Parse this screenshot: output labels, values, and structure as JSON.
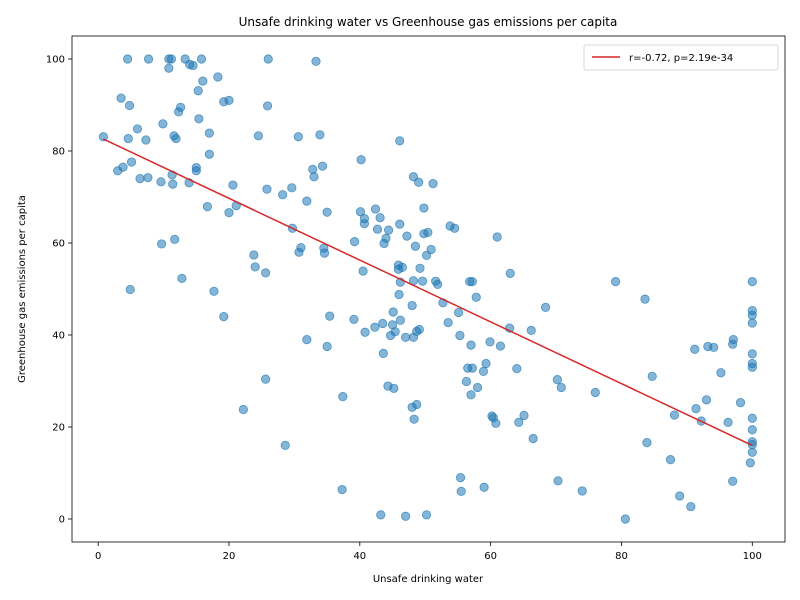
{
  "chart_data": {
    "type": "scatter",
    "title": "Unsafe drinking water vs Greenhouse gas emissions per capita",
    "xlabel": "Unsafe drinking water",
    "ylabel": "Greenhouse gas emissions per capita",
    "xlim": [
      -4,
      105
    ],
    "ylim": [
      -5,
      105
    ],
    "xticks": [
      0,
      20,
      40,
      60,
      80,
      100
    ],
    "yticks": [
      0,
      20,
      40,
      60,
      80,
      100
    ],
    "grid": false,
    "legend_position": "top-right",
    "colors": {
      "points": "#1f77b4",
      "fit_line": "#d62728"
    },
    "fit_line": {
      "label": "r=-0.72, p=2.19e-34",
      "x": [
        0.8,
        100
      ],
      "y": [
        82.6,
        16.0
      ]
    },
    "points": [
      [
        4.5,
        100
      ],
      [
        7.7,
        100
      ],
      [
        10.8,
        100
      ],
      [
        11.2,
        100
      ],
      [
        13.3,
        100
      ],
      [
        15.8,
        100
      ],
      [
        26.0,
        100
      ],
      [
        33.3,
        99.5
      ],
      [
        14.0,
        98.8
      ],
      [
        14.5,
        98.6
      ],
      [
        10.8,
        98.0
      ],
      [
        18.3,
        96.1
      ],
      [
        16.0,
        95.2
      ],
      [
        15.3,
        93.1
      ],
      [
        3.5,
        91.5
      ],
      [
        20.0,
        91.0
      ],
      [
        19.2,
        90.7
      ],
      [
        4.8,
        89.9
      ],
      [
        25.9,
        89.8
      ],
      [
        12.6,
        89.5
      ],
      [
        12.3,
        88.5
      ],
      [
        15.4,
        87.0
      ],
      [
        9.9,
        85.9
      ],
      [
        6.0,
        84.8
      ],
      [
        17.0,
        83.9
      ],
      [
        33.9,
        83.5
      ],
      [
        24.5,
        83.3
      ],
      [
        11.6,
        83.3
      ],
      [
        30.6,
        83.1
      ],
      [
        0.8,
        83.1
      ],
      [
        4.6,
        82.7
      ],
      [
        11.9,
        82.7
      ],
      [
        7.3,
        82.4
      ],
      [
        46.1,
        82.2
      ],
      [
        17.0,
        79.3
      ],
      [
        40.2,
        78.1
      ],
      [
        5.1,
        77.6
      ],
      [
        34.3,
        76.7
      ],
      [
        3.8,
        76.5
      ],
      [
        15.0,
        76.4
      ],
      [
        32.8,
        76.0
      ],
      [
        3.0,
        75.7
      ],
      [
        15.0,
        75.7
      ],
      [
        11.3,
        74.8
      ],
      [
        48.2,
        74.4
      ],
      [
        33.0,
        74.4
      ],
      [
        7.6,
        74.2
      ],
      [
        6.4,
        74.0
      ],
      [
        9.6,
        73.3
      ],
      [
        49.0,
        73.2
      ],
      [
        13.9,
        73.1
      ],
      [
        51.2,
        72.9
      ],
      [
        11.4,
        72.8
      ],
      [
        20.6,
        72.6
      ],
      [
        29.6,
        72.0
      ],
      [
        25.8,
        71.7
      ],
      [
        28.2,
        70.5
      ],
      [
        31.9,
        69.1
      ],
      [
        21.1,
        68.1
      ],
      [
        16.7,
        67.9
      ],
      [
        49.8,
        67.6
      ],
      [
        42.4,
        67.4
      ],
      [
        40.1,
        66.8
      ],
      [
        35.0,
        66.7
      ],
      [
        20.0,
        66.6
      ],
      [
        43.1,
        65.5
      ],
      [
        40.7,
        65.3
      ],
      [
        40.7,
        64.2
      ],
      [
        46.1,
        64.1
      ],
      [
        53.8,
        63.7
      ],
      [
        54.5,
        63.2
      ],
      [
        29.7,
        63.2
      ],
      [
        42.7,
        63.0
      ],
      [
        44.4,
        62.8
      ],
      [
        50.4,
        62.3
      ],
      [
        49.8,
        62.0
      ],
      [
        47.2,
        61.5
      ],
      [
        61.0,
        61.3
      ],
      [
        44.0,
        61.0
      ],
      [
        39.2,
        60.3
      ],
      [
        11.7,
        60.8
      ],
      [
        9.7,
        59.8
      ],
      [
        43.7,
        59.9
      ],
      [
        48.5,
        59.3
      ],
      [
        31.0,
        59.0
      ],
      [
        34.5,
        58.9
      ],
      [
        50.9,
        58.6
      ],
      [
        30.7,
        58.0
      ],
      [
        34.6,
        57.8
      ],
      [
        23.8,
        57.4
      ],
      [
        50.2,
        57.3
      ],
      [
        45.9,
        55.2
      ],
      [
        46.5,
        54.7
      ],
      [
        45.9,
        54.3
      ],
      [
        49.2,
        54.5
      ],
      [
        24.0,
        54.8
      ],
      [
        40.5,
        53.9
      ],
      [
        25.6,
        53.5
      ],
      [
        63.0,
        53.4
      ],
      [
        12.8,
        52.3
      ],
      [
        48.2,
        51.8
      ],
      [
        46.2,
        51.5
      ],
      [
        49.6,
        51.7
      ],
      [
        51.6,
        51.7
      ],
      [
        51.9,
        51.0
      ],
      [
        56.8,
        51.6
      ],
      [
        57.2,
        51.6
      ],
      [
        79.1,
        51.6
      ],
      [
        100,
        51.6
      ],
      [
        4.9,
        49.9
      ],
      [
        17.7,
        49.5
      ],
      [
        46.0,
        48.8
      ],
      [
        57.8,
        48.2
      ],
      [
        83.6,
        47.8
      ],
      [
        52.7,
        47.0
      ],
      [
        48.0,
        46.4
      ],
      [
        68.4,
        46.0
      ],
      [
        100,
        45.3
      ],
      [
        45.1,
        45.0
      ],
      [
        55.1,
        44.9
      ],
      [
        19.2,
        44.0
      ],
      [
        35.4,
        44.1
      ],
      [
        100,
        44.3
      ],
      [
        39.1,
        43.4
      ],
      [
        46.2,
        43.2
      ],
      [
        53.5,
        42.7
      ],
      [
        43.5,
        42.5
      ],
      [
        45.0,
        42.2
      ],
      [
        100,
        42.6
      ],
      [
        42.3,
        41.7
      ],
      [
        62.9,
        41.5
      ],
      [
        49.1,
        41.2
      ],
      [
        40.8,
        40.6
      ],
      [
        48.7,
        40.8
      ],
      [
        66.2,
        41.0
      ],
      [
        45.4,
        40.7
      ],
      [
        44.7,
        39.9
      ],
      [
        47.0,
        39.5
      ],
      [
        48.2,
        39.5
      ],
      [
        55.3,
        39.9
      ],
      [
        31.9,
        39.0
      ],
      [
        97.1,
        39.0
      ],
      [
        59.9,
        38.5
      ],
      [
        97.0,
        38.0
      ],
      [
        57.0,
        37.8
      ],
      [
        61.5,
        37.6
      ],
      [
        93.2,
        37.5
      ],
      [
        94.1,
        37.3
      ],
      [
        35.0,
        37.5
      ],
      [
        91.2,
        36.9
      ],
      [
        43.6,
        36.0
      ],
      [
        100,
        35.9
      ],
      [
        59.3,
        33.8
      ],
      [
        100,
        33.8
      ],
      [
        100,
        33.0
      ],
      [
        56.5,
        32.8
      ],
      [
        57.2,
        32.8
      ],
      [
        64.0,
        32.7
      ],
      [
        58.9,
        32.1
      ],
      [
        95.2,
        31.8
      ],
      [
        84.7,
        31.0
      ],
      [
        56.3,
        29.9
      ],
      [
        70.2,
        30.3
      ],
      [
        25.6,
        30.4
      ],
      [
        44.3,
        28.9
      ],
      [
        45.2,
        28.4
      ],
      [
        58.0,
        28.6
      ],
      [
        70.8,
        28.6
      ],
      [
        76.0,
        27.5
      ],
      [
        57.0,
        27.0
      ],
      [
        37.4,
        26.6
      ],
      [
        93.0,
        25.9
      ],
      [
        98.2,
        25.3
      ],
      [
        48.7,
        24.9
      ],
      [
        48.0,
        24.3
      ],
      [
        22.2,
        23.8
      ],
      [
        91.4,
        24.0
      ],
      [
        60.2,
        22.4
      ],
      [
        60.4,
        22.0
      ],
      [
        65.1,
        22.5
      ],
      [
        88.1,
        22.6
      ],
      [
        48.3,
        21.7
      ],
      [
        60.8,
        20.8
      ],
      [
        64.3,
        21.0
      ],
      [
        92.2,
        21.3
      ],
      [
        96.3,
        21.0
      ],
      [
        100,
        21.9
      ],
      [
        100,
        19.4
      ],
      [
        66.5,
        17.5
      ],
      [
        83.9,
        16.6
      ],
      [
        100,
        16.8
      ],
      [
        100,
        16.2
      ],
      [
        28.6,
        16.0
      ],
      [
        100,
        14.5
      ],
      [
        87.5,
        12.9
      ],
      [
        99.7,
        12.2
      ],
      [
        55.4,
        9.0
      ],
      [
        70.3,
        8.3
      ],
      [
        97.0,
        8.2
      ],
      [
        59.0,
        6.9
      ],
      [
        37.3,
        6.4
      ],
      [
        74.0,
        6.1
      ],
      [
        55.5,
        6.0
      ],
      [
        88.9,
        5.0
      ],
      [
        90.6,
        2.7
      ],
      [
        43.2,
        0.9
      ],
      [
        50.2,
        0.9
      ],
      [
        47.0,
        0.6
      ],
      [
        80.6,
        0.0
      ]
    ]
  }
}
